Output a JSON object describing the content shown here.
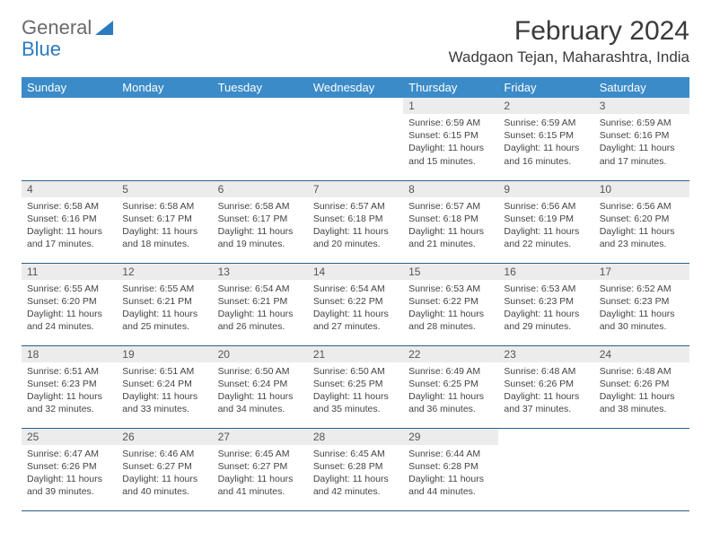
{
  "logo": {
    "text1": "General",
    "text2": "Blue"
  },
  "title": "February 2024",
  "location": "Wadgaon Tejan, Maharashtra, India",
  "colors": {
    "header_bg": "#3b8bc8",
    "header_text": "#ffffff",
    "daynum_bg": "#ececec",
    "border": "#2b5f8a",
    "logo_gray": "#6a6a6a",
    "logo_blue": "#2b7bbf"
  },
  "weekdays": [
    "Sunday",
    "Monday",
    "Tuesday",
    "Wednesday",
    "Thursday",
    "Friday",
    "Saturday"
  ],
  "weeks": [
    [
      null,
      null,
      null,
      null,
      {
        "n": "1",
        "sr": "6:59 AM",
        "ss": "6:15 PM",
        "dl": "11 hours and 15 minutes."
      },
      {
        "n": "2",
        "sr": "6:59 AM",
        "ss": "6:15 PM",
        "dl": "11 hours and 16 minutes."
      },
      {
        "n": "3",
        "sr": "6:59 AM",
        "ss": "6:16 PM",
        "dl": "11 hours and 17 minutes."
      }
    ],
    [
      {
        "n": "4",
        "sr": "6:58 AM",
        "ss": "6:16 PM",
        "dl": "11 hours and 17 minutes."
      },
      {
        "n": "5",
        "sr": "6:58 AM",
        "ss": "6:17 PM",
        "dl": "11 hours and 18 minutes."
      },
      {
        "n": "6",
        "sr": "6:58 AM",
        "ss": "6:17 PM",
        "dl": "11 hours and 19 minutes."
      },
      {
        "n": "7",
        "sr": "6:57 AM",
        "ss": "6:18 PM",
        "dl": "11 hours and 20 minutes."
      },
      {
        "n": "8",
        "sr": "6:57 AM",
        "ss": "6:18 PM",
        "dl": "11 hours and 21 minutes."
      },
      {
        "n": "9",
        "sr": "6:56 AM",
        "ss": "6:19 PM",
        "dl": "11 hours and 22 minutes."
      },
      {
        "n": "10",
        "sr": "6:56 AM",
        "ss": "6:20 PM",
        "dl": "11 hours and 23 minutes."
      }
    ],
    [
      {
        "n": "11",
        "sr": "6:55 AM",
        "ss": "6:20 PM",
        "dl": "11 hours and 24 minutes."
      },
      {
        "n": "12",
        "sr": "6:55 AM",
        "ss": "6:21 PM",
        "dl": "11 hours and 25 minutes."
      },
      {
        "n": "13",
        "sr": "6:54 AM",
        "ss": "6:21 PM",
        "dl": "11 hours and 26 minutes."
      },
      {
        "n": "14",
        "sr": "6:54 AM",
        "ss": "6:22 PM",
        "dl": "11 hours and 27 minutes."
      },
      {
        "n": "15",
        "sr": "6:53 AM",
        "ss": "6:22 PM",
        "dl": "11 hours and 28 minutes."
      },
      {
        "n": "16",
        "sr": "6:53 AM",
        "ss": "6:23 PM",
        "dl": "11 hours and 29 minutes."
      },
      {
        "n": "17",
        "sr": "6:52 AM",
        "ss": "6:23 PM",
        "dl": "11 hours and 30 minutes."
      }
    ],
    [
      {
        "n": "18",
        "sr": "6:51 AM",
        "ss": "6:23 PM",
        "dl": "11 hours and 32 minutes."
      },
      {
        "n": "19",
        "sr": "6:51 AM",
        "ss": "6:24 PM",
        "dl": "11 hours and 33 minutes."
      },
      {
        "n": "20",
        "sr": "6:50 AM",
        "ss": "6:24 PM",
        "dl": "11 hours and 34 minutes."
      },
      {
        "n": "21",
        "sr": "6:50 AM",
        "ss": "6:25 PM",
        "dl": "11 hours and 35 minutes."
      },
      {
        "n": "22",
        "sr": "6:49 AM",
        "ss": "6:25 PM",
        "dl": "11 hours and 36 minutes."
      },
      {
        "n": "23",
        "sr": "6:48 AM",
        "ss": "6:26 PM",
        "dl": "11 hours and 37 minutes."
      },
      {
        "n": "24",
        "sr": "6:48 AM",
        "ss": "6:26 PM",
        "dl": "11 hours and 38 minutes."
      }
    ],
    [
      {
        "n": "25",
        "sr": "6:47 AM",
        "ss": "6:26 PM",
        "dl": "11 hours and 39 minutes."
      },
      {
        "n": "26",
        "sr": "6:46 AM",
        "ss": "6:27 PM",
        "dl": "11 hours and 40 minutes."
      },
      {
        "n": "27",
        "sr": "6:45 AM",
        "ss": "6:27 PM",
        "dl": "11 hours and 41 minutes."
      },
      {
        "n": "28",
        "sr": "6:45 AM",
        "ss": "6:28 PM",
        "dl": "11 hours and 42 minutes."
      },
      {
        "n": "29",
        "sr": "6:44 AM",
        "ss": "6:28 PM",
        "dl": "11 hours and 44 minutes."
      },
      null,
      null
    ]
  ],
  "labels": {
    "sunrise": "Sunrise:",
    "sunset": "Sunset:",
    "daylight": "Daylight:"
  }
}
